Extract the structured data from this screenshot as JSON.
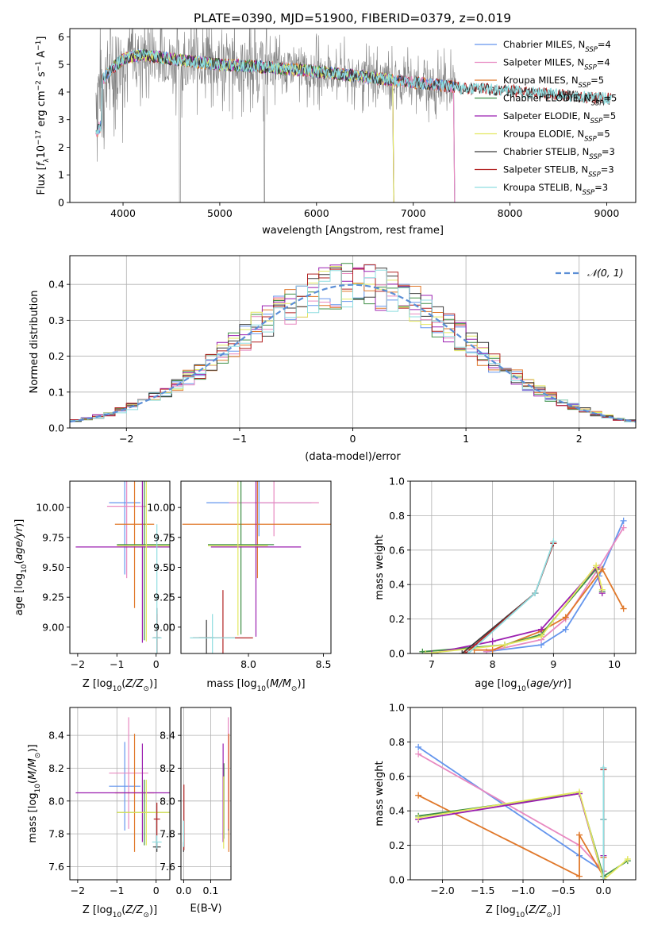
{
  "figure_title": "PLATE=0390, MJD=51900, FIBERID=0379, z=0.019",
  "colors": {
    "Chabrier MILES": "#6495ed",
    "Salpeter MILES": "#e889c1",
    "Kroupa MILES": "#e0782a",
    "Chabrier ELODIE": "#3f8f45",
    "Salpeter ELODIE": "#9b1fb0",
    "Kroupa ELODIE": "#e3e860",
    "Chabrier STELIB": "#3a3a3a",
    "Salpeter STELIB": "#b22222",
    "Kroupa STELIB": "#8fdde0",
    "data": "#808080",
    "normal": "#5b8ed6"
  },
  "chart_data": [
    {
      "id": "spectrum",
      "type": "line",
      "xlabel": "wavelength [Angstrom, rest frame]",
      "ylabel": "Flux [f_λ 10^-17 erg cm^-2 s^-1 A^-1]",
      "xlim": [
        3450,
        9300
      ],
      "ylim": [
        0,
        6.3
      ],
      "xticks": [
        4000,
        5000,
        6000,
        7000,
        8000,
        9000
      ],
      "yticks": [
        0,
        1,
        2,
        3,
        4,
        5,
        6
      ],
      "legend_position": "upper right",
      "legend": [
        {
          "label": "Chabrier MILES, N",
          "sub": "SSP",
          "tail": "=4",
          "color_key": "Chabrier MILES"
        },
        {
          "label": "Salpeter MILES, N",
          "sub": "SSP",
          "tail": "=4",
          "color_key": "Salpeter MILES"
        },
        {
          "label": "Kroupa MILES, N",
          "sub": "SSP",
          "tail": "=5",
          "color_key": "Kroupa MILES"
        },
        {
          "label": "Chabrier ELODIE, N",
          "sub": "SSP",
          "tail": "=5",
          "color_key": "Chabrier ELODIE"
        },
        {
          "label": "Salpeter ELODIE, N",
          "sub": "SSP",
          "tail": "=5",
          "color_key": "Salpeter ELODIE"
        },
        {
          "label": "Kroupa ELODIE, N",
          "sub": "SSP",
          "tail": "=5",
          "color_key": "Kroupa ELODIE"
        },
        {
          "label": "Chabrier STELIB, N",
          "sub": "SSP",
          "tail": "=3",
          "color_key": "Chabrier STELIB"
        },
        {
          "label": "Salpeter STELIB, N",
          "sub": "SSP",
          "tail": "=3",
          "color_key": "Salpeter STELIB"
        },
        {
          "label": "Kroupa STELIB, N",
          "sub": "SSP",
          "tail": "=3",
          "color_key": "Kroupa STELIB"
        }
      ],
      "continuum": [
        [
          3720,
          4.0
        ],
        [
          3800,
          4.5
        ],
        [
          3900,
          4.9
        ],
        [
          4000,
          5.2
        ],
        [
          4200,
          5.35
        ],
        [
          4500,
          5.2
        ],
        [
          5000,
          5.0
        ],
        [
          5500,
          4.9
        ],
        [
          6000,
          4.75
        ],
        [
          6500,
          4.55
        ],
        [
          7000,
          4.35
        ],
        [
          7500,
          4.15
        ],
        [
          8000,
          4.05
        ],
        [
          8500,
          3.9
        ],
        [
          9050,
          3.75
        ]
      ],
      "data_range": [
        3720,
        7440
      ]
    },
    {
      "id": "residuals",
      "type": "histogram",
      "xlabel": "(data-model)/error",
      "ylabel": "Normed distribution",
      "xlim": [
        -2.5,
        2.5
      ],
      "ylim": [
        0,
        0.48
      ],
      "xticks": [
        -2,
        -1,
        0,
        1,
        2
      ],
      "yticks": [
        0.0,
        0.1,
        0.2,
        0.3,
        0.4
      ],
      "grid": true,
      "bin_width": 0.1,
      "bin_start": -2.5,
      "normal_label": "𝒩(0, 1)",
      "legend_position": "upper right"
    },
    {
      "id": "age_Z",
      "type": "errorbar",
      "xlabel": "Z [log10(Z/Z⊙)]",
      "ylabel": "age  [log10(age/yr)]",
      "xlim": [
        -2.2,
        0.35
      ],
      "ylim": [
        8.78,
        10.22
      ],
      "xticks": [
        -2,
        -1,
        0
      ],
      "yticks": [
        9.0,
        9.25,
        9.5,
        9.75,
        10.0
      ],
      "grid": false,
      "points": [
        {
          "m": "Chabrier MILES",
          "x": -0.8,
          "y": 10.04,
          "xe": 0.4,
          "ye": 0.6
        },
        {
          "m": "Salpeter MILES",
          "x": -0.75,
          "y": 10.01,
          "xe": 0.5,
          "ye": 0.6
        },
        {
          "m": "Kroupa MILES",
          "x": -0.55,
          "y": 9.86,
          "xe": 0.5,
          "ye": 0.7
        },
        {
          "m": "Chabrier ELODIE",
          "x": -0.3,
          "y": 9.69,
          "xe": 0.7,
          "ye": 0.8
        },
        {
          "m": "Salpeter ELODIE",
          "x": -0.35,
          "y": 9.67,
          "xe": 1.7,
          "ye": 0.8
        },
        {
          "m": "Kroupa ELODIE",
          "x": -0.25,
          "y": 9.68,
          "xe": 0.75,
          "ye": 0.8
        },
        {
          "m": "Chabrier STELIB",
          "x": 0.02,
          "y": 8.91,
          "xe": 0.1,
          "ye": 0.25
        },
        {
          "m": "Salpeter STELIB",
          "x": 0.02,
          "y": 8.91,
          "xe": 0.08,
          "ye": 0.2
        },
        {
          "m": "Kroupa STELIB",
          "x": 0.02,
          "y": 8.91,
          "xe": 0.12,
          "ye": 0.95
        }
      ]
    },
    {
      "id": "age_mass",
      "type": "errorbar",
      "xlabel": "mass [log10(M/M⊙)]",
      "ylabel": "",
      "xlim": [
        7.55,
        8.55
      ],
      "ylim": [
        8.78,
        10.22
      ],
      "xticks": [
        8.0,
        8.5
      ],
      "yticks": [
        9.0,
        9.25,
        9.5,
        9.75,
        10.0
      ],
      "grid": false,
      "points": [
        {
          "m": "Chabrier MILES",
          "x": 8.07,
          "y": 10.04,
          "xe": 0.35,
          "ye": 0.28
        },
        {
          "m": "Salpeter MILES",
          "x": 8.17,
          "y": 10.04,
          "xe": 0.3,
          "ye": 0.28
        },
        {
          "m": "Kroupa MILES",
          "x": 8.06,
          "y": 9.86,
          "xe": 0.5,
          "ye": 0.45
        },
        {
          "m": "Chabrier ELODIE",
          "x": 7.95,
          "y": 9.69,
          "xe": 0.22,
          "ye": 0.75
        },
        {
          "m": "Salpeter ELODIE",
          "x": 8.05,
          "y": 9.67,
          "xe": 0.3,
          "ye": 0.75
        },
        {
          "m": "Kroupa ELODIE",
          "x": 7.93,
          "y": 9.68,
          "xe": 0.2,
          "ye": 0.75
        },
        {
          "m": "Chabrier STELIB",
          "x": 7.72,
          "y": 8.91,
          "xe": 0.05,
          "ye": 0.15
        },
        {
          "m": "Salpeter STELIB",
          "x": 7.83,
          "y": 8.91,
          "xe": 0.2,
          "ye": 0.4
        },
        {
          "m": "Kroupa STELIB",
          "x": 7.76,
          "y": 8.91,
          "xe": 0.15,
          "ye": 0.2
        }
      ]
    },
    {
      "id": "weight_age",
      "type": "line",
      "xlabel": "age  [log10(age/yr)]",
      "ylabel": "mass weight",
      "xlim": [
        6.65,
        10.35
      ],
      "ylim": [
        0,
        1.0
      ],
      "xticks": [
        7,
        8,
        9,
        10
      ],
      "yticks": [
        0.0,
        0.2,
        0.4,
        0.6,
        0.8,
        1.0
      ],
      "grid": true,
      "series": [
        {
          "m": "Chabrier MILES",
          "x": [
            7.9,
            8.8,
            9.2,
            9.75,
            10.15
          ],
          "y": [
            0.01,
            0.05,
            0.14,
            0.45,
            0.77
          ]
        },
        {
          "m": "Salpeter MILES",
          "x": [
            7.9,
            8.8,
            9.2,
            9.75,
            10.15
          ],
          "y": [
            0.01,
            0.08,
            0.2,
            0.5,
            0.73
          ]
        },
        {
          "m": "Kroupa MILES",
          "x": [
            7.7,
            8.0,
            8.8,
            9.2,
            9.8,
            10.15
          ],
          "y": [
            0.02,
            0.02,
            0.13,
            0.21,
            0.49,
            0.26
          ]
        },
        {
          "m": "Chabrier ELODIE",
          "x": [
            6.85,
            8.2,
            8.8,
            9.7,
            9.8
          ],
          "y": [
            0.01,
            0.05,
            0.11,
            0.49,
            0.36
          ]
        },
        {
          "m": "Salpeter ELODIE",
          "x": [
            7.0,
            8.0,
            8.8,
            9.7,
            9.8
          ],
          "y": [
            0.0,
            0.07,
            0.14,
            0.5,
            0.35
          ]
        },
        {
          "m": "Kroupa ELODIE",
          "x": [
            6.9,
            8.2,
            8.8,
            9.7,
            9.8
          ],
          "y": [
            0.0,
            0.05,
            0.1,
            0.51,
            0.37
          ]
        },
        {
          "m": "Chabrier STELIB",
          "x": [
            7.5,
            8.7,
            9.0
          ],
          "y": [
            0.0,
            0.35,
            0.64
          ]
        },
        {
          "m": "Salpeter STELIB",
          "x": [
            7.55,
            8.7,
            9.0
          ],
          "y": [
            0.0,
            0.35,
            0.64
          ]
        },
        {
          "m": "Kroupa STELIB",
          "x": [
            7.6,
            8.7,
            9.0
          ],
          "y": [
            0.0,
            0.35,
            0.65
          ]
        }
      ]
    },
    {
      "id": "mass_Z",
      "type": "errorbar",
      "xlabel": "Z [log10(Z/Z⊙)]",
      "ylabel": "mass [log10(M/M⊙)]",
      "xlim": [
        -2.2,
        0.35
      ],
      "ylim": [
        7.52,
        8.57
      ],
      "xticks": [
        -2,
        -1,
        0
      ],
      "yticks": [
        7.6,
        7.8,
        8.0,
        8.2,
        8.4
      ],
      "grid": true,
      "points": [
        {
          "m": "Chabrier MILES",
          "x": -0.8,
          "y": 8.09,
          "xe": 0.4,
          "ye": 0.27
        },
        {
          "m": "Salpeter MILES",
          "x": -0.7,
          "y": 8.17,
          "xe": 0.5,
          "ye": 0.34
        },
        {
          "m": "Kroupa MILES",
          "x": -0.55,
          "y": 8.05,
          "xe": 0.5,
          "ye": 0.36
        },
        {
          "m": "Chabrier ELODIE",
          "x": -0.3,
          "y": 7.93,
          "xe": 0.7,
          "ye": 0.2
        },
        {
          "m": "Salpeter ELODIE",
          "x": -0.35,
          "y": 8.05,
          "xe": 1.7,
          "ye": 0.3
        },
        {
          "m": "Kroupa ELODIE",
          "x": -0.25,
          "y": 7.93,
          "xe": 0.75,
          "ye": 0.2
        },
        {
          "m": "Chabrier STELIB",
          "x": 0.02,
          "y": 7.72,
          "xe": 0.1,
          "ye": 0.03
        },
        {
          "m": "Salpeter STELIB",
          "x": 0.02,
          "y": 7.89,
          "xe": 0.08,
          "ye": 0.1
        },
        {
          "m": "Kroupa STELIB",
          "x": 0.02,
          "y": 7.75,
          "xe": 0.12,
          "ye": 0.04
        }
      ]
    },
    {
      "id": "mass_ebv",
      "type": "errorbar",
      "xlabel": "E(B-V)",
      "ylabel": "",
      "xlim": [
        -0.01,
        0.175
      ],
      "ylim": [
        7.52,
        8.57
      ],
      "xticks": [
        0.0,
        0.1
      ],
      "yticks": [
        7.6,
        7.8,
        8.0,
        8.2,
        8.4
      ],
      "grid": true,
      "points": [
        {
          "m": "Chabrier MILES",
          "x": 0.165,
          "y": 8.09,
          "xe": 0,
          "ye": 0.27
        },
        {
          "m": "Salpeter MILES",
          "x": 0.165,
          "y": 8.17,
          "xe": 0,
          "ye": 0.34
        },
        {
          "m": "Kroupa MILES",
          "x": 0.167,
          "y": 8.05,
          "xe": 0,
          "ye": 0.36
        },
        {
          "m": "Chabrier ELODIE",
          "x": 0.149,
          "y": 8.0,
          "xe": 0,
          "ye": 0.23
        },
        {
          "m": "Salpeter ELODIE",
          "x": 0.146,
          "y": 8.05,
          "xe": 0,
          "ye": 0.3
        },
        {
          "m": "Kroupa ELODIE",
          "x": 0.148,
          "y": 7.93,
          "xe": 0,
          "ye": 0.22
        },
        {
          "m": "Chabrier STELIB",
          "x": 0.0,
          "y": 7.72,
          "xe": 0,
          "ye": 0.03
        },
        {
          "m": "Salpeter STELIB",
          "x": 0.001,
          "y": 7.9,
          "xe": 0,
          "ye": 0.2
        },
        {
          "m": "Kroupa STELIB",
          "x": 0.0,
          "y": 7.8,
          "xe": 0,
          "ye": 0.08
        }
      ]
    },
    {
      "id": "weight_Z",
      "type": "line",
      "xlabel": "Z [log10(Z/Z⊙)]",
      "ylabel": "mass weight",
      "xlim": [
        -2.4,
        0.4
      ],
      "ylim": [
        0,
        1.0
      ],
      "xticks": [
        -2.0,
        -1.5,
        -1.0,
        -0.5,
        0.0
      ],
      "yticks": [
        0.0,
        0.2,
        0.4,
        0.6,
        0.8,
        1.0
      ],
      "grid": true,
      "series": [
        {
          "m": "Chabrier MILES",
          "x": [
            -2.3,
            -0.3,
            0.0
          ],
          "y": [
            0.77,
            0.14,
            0.05
          ]
        },
        {
          "m": "Salpeter MILES",
          "x": [
            -2.3,
            -0.3,
            0.0
          ],
          "y": [
            0.73,
            0.2,
            0.05
          ]
        },
        {
          "m": "Kroupa MILES",
          "x": [
            -2.3,
            -0.3,
            -0.3,
            0.0,
            0.0
          ],
          "y": [
            0.49,
            0.02,
            0.26,
            0.02,
            0.13
          ]
        },
        {
          "m": "Chabrier ELODIE",
          "x": [
            -2.3,
            -0.3,
            0.0,
            0.3
          ],
          "y": [
            0.37,
            0.5,
            0.02,
            0.11
          ]
        },
        {
          "m": "Salpeter ELODIE",
          "x": [
            -2.3,
            -0.3,
            0.0,
            0.0
          ],
          "y": [
            0.35,
            0.5,
            0.0,
            0.14
          ]
        },
        {
          "m": "Kroupa ELODIE",
          "x": [
            -2.3,
            -0.3,
            0.0,
            0.3
          ],
          "y": [
            0.36,
            0.51,
            0.0,
            0.12
          ]
        },
        {
          "m": "Chabrier STELIB",
          "x": [
            0.0,
            0.0,
            0.0
          ],
          "y": [
            0.0,
            0.35,
            0.64
          ]
        },
        {
          "m": "Salpeter STELIB",
          "x": [
            0.0,
            0.0,
            0.0
          ],
          "y": [
            0.0,
            0.35,
            0.64
          ]
        },
        {
          "m": "Kroupa STELIB",
          "x": [
            0.0,
            0.0,
            0.0
          ],
          "y": [
            0.0,
            0.35,
            0.65
          ]
        }
      ]
    }
  ]
}
